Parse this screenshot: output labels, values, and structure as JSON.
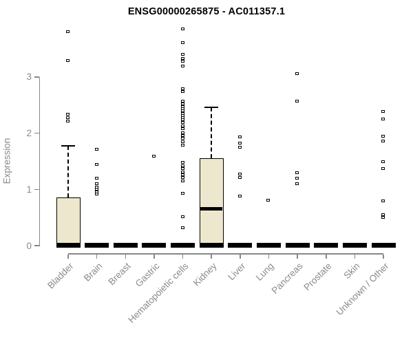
{
  "chart_data": {
    "type": "boxplot",
    "title": "ENSG00000265875 - AC011357.1",
    "ylabel": "Expression",
    "xlabel": "",
    "ylim": [
      0,
      3.95
    ],
    "yticks": [
      0,
      1,
      2,
      3
    ],
    "grid": false,
    "legend": null,
    "categories": [
      "Bladder",
      "Brain",
      "Breast",
      "Gastric",
      "Hematopoietic cells",
      "Kidney",
      "Liver",
      "Lung",
      "Pancreas",
      "Prostate",
      "Skin",
      "Unknown / Other"
    ],
    "boxes": [
      {
        "label": "Bladder",
        "q1": 0,
        "median": 0.02,
        "q3": 0.86,
        "whisker_low": 0,
        "whisker_high": 1.78,
        "outliers": [
          2.21,
          2.27,
          2.33,
          3.29,
          3.8
        ]
      },
      {
        "label": "Brain",
        "q1": 0,
        "median": 0.01,
        "q3": 0.02,
        "whisker_low": 0,
        "whisker_high": 0.02,
        "outliers": [
          0.91,
          0.95,
          1.0,
          1.04,
          1.09,
          1.19,
          1.44,
          1.71
        ]
      },
      {
        "label": "Breast",
        "q1": 0,
        "median": 0.01,
        "q3": 0.02,
        "whisker_low": 0,
        "whisker_high": 0.02,
        "outliers": []
      },
      {
        "label": "Gastric",
        "q1": 0,
        "median": 0.01,
        "q3": 0.02,
        "whisker_low": 0,
        "whisker_high": 0.02,
        "outliers": [
          1.58
        ]
      },
      {
        "label": "Hematopoietic cells",
        "q1": 0,
        "median": 0.01,
        "q3": 0.02,
        "whisker_low": 0,
        "whisker_high": 0.02,
        "outliers": [
          0.31,
          0.51,
          0.92,
          1.15,
          1.21,
          1.26,
          1.31,
          1.37,
          1.42,
          1.47,
          1.78,
          1.84,
          1.9,
          1.95,
          2.0,
          2.07,
          2.13,
          2.19,
          2.23,
          2.27,
          2.31,
          2.35,
          2.39,
          2.43,
          2.47,
          2.52,
          2.56,
          2.74,
          2.78,
          3.19,
          3.27,
          3.33,
          3.4,
          3.6,
          3.85
        ]
      },
      {
        "label": "Kidney",
        "q1": 0.02,
        "median": 0.66,
        "q3": 1.55,
        "whisker_low": 0,
        "whisker_high": 2.46,
        "outliers": []
      },
      {
        "label": "Liver",
        "q1": 0,
        "median": 0.01,
        "q3": 0.02,
        "whisker_low": 0,
        "whisker_high": 0.02,
        "outliers": [
          0.88,
          1.2,
          1.27,
          1.75,
          1.82,
          1.93
        ]
      },
      {
        "label": "Lung",
        "q1": 0,
        "median": 0.01,
        "q3": 0.02,
        "whisker_low": 0,
        "whisker_high": 0.02,
        "outliers": [
          0.8
        ]
      },
      {
        "label": "Pancreas",
        "q1": 0,
        "median": 0.01,
        "q3": 0.02,
        "whisker_low": 0,
        "whisker_high": 0.02,
        "outliers": [
          1.1,
          1.19,
          1.29,
          2.57,
          3.06
        ]
      },
      {
        "label": "Prostate",
        "q1": 0,
        "median": 0.01,
        "q3": 0.02,
        "whisker_low": 0,
        "whisker_high": 0.02,
        "outliers": []
      },
      {
        "label": "Skin",
        "q1": 0,
        "median": 0.01,
        "q3": 0.02,
        "whisker_low": 0,
        "whisker_high": 0.02,
        "outliers": []
      },
      {
        "label": "Unknown / Other",
        "q1": 0,
        "median": 0.01,
        "q3": 0.02,
        "whisker_low": 0,
        "whisker_high": 0.02,
        "outliers": [
          0.5,
          0.55,
          0.79,
          1.36,
          1.49,
          1.85,
          1.94,
          2.25,
          2.38
        ]
      }
    ],
    "colors": {
      "box_fill": "#EDE8CD",
      "box_border": "#000000",
      "median": "#000000",
      "axis": "#878787",
      "tick_text": "#8a8a8a",
      "title_text": "#000000"
    }
  }
}
